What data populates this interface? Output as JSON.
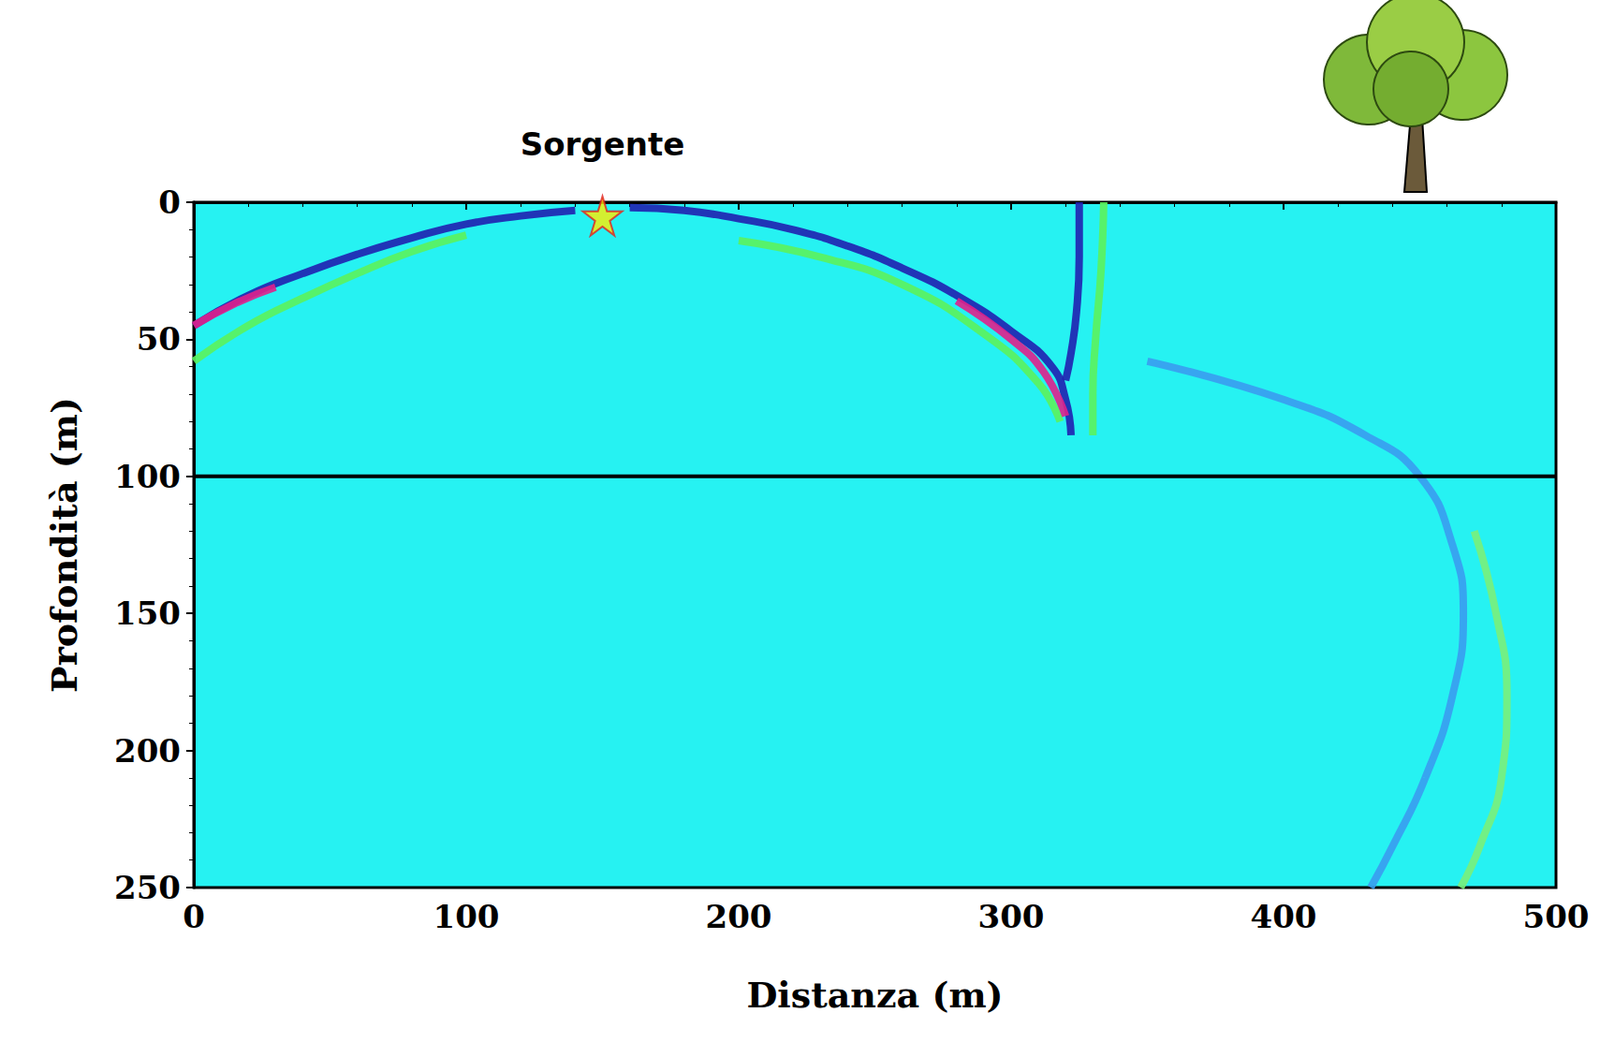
{
  "chart_data": {
    "type": "line",
    "xlabel": "Distanza (m)",
    "ylabel": "Profondità (m)",
    "xlim": [
      0,
      500
    ],
    "xticks": [
      0,
      100,
      200,
      300,
      400,
      500
    ],
    "ylim": [
      0,
      250
    ],
    "yticks": [
      0,
      50,
      100,
      150,
      200,
      250
    ],
    "grid": false,
    "annotations": [
      {
        "text": "Sorgente",
        "x": 150
      }
    ],
    "series": [
      {
        "type": "line",
        "line_style": "solid",
        "color": "#5cf25c",
        "x": [
          0,
          20,
          40,
          60,
          80,
          100
        ],
        "values": [
          58,
          45,
          35,
          26,
          18,
          12
        ]
      },
      {
        "type": "line",
        "line_style": "solid",
        "color": "#2020b0",
        "x": [
          0,
          20,
          40,
          60,
          80,
          100,
          120,
          140
        ],
        "values": [
          45,
          34,
          26,
          19,
          13,
          8,
          5,
          3
        ]
      },
      {
        "type": "line",
        "line_style": "solid",
        "color": "#e0208c",
        "x": [
          0,
          15,
          30
        ],
        "values": [
          45,
          37,
          31
        ]
      },
      {
        "type": "line",
        "line_style": "solid",
        "color": "#5cf25c",
        "x": [
          200,
          230,
          260,
          290,
          310,
          318
        ],
        "values": [
          14,
          20,
          30,
          48,
          66,
          80
        ]
      },
      {
        "type": "line",
        "line_style": "solid",
        "color": "#2020b0",
        "x": [
          160,
          180,
          200,
          220,
          240,
          260,
          280,
          300,
          315,
          320,
          322
        ],
        "values": [
          2,
          3,
          6,
          10,
          16,
          24,
          34,
          47,
          60,
          72,
          85
        ]
      },
      {
        "type": "line",
        "line_style": "solid",
        "color": "#e0208c",
        "x": [
          280,
          300,
          312,
          320
        ],
        "values": [
          36,
          50,
          62,
          78
        ]
      },
      {
        "type": "line",
        "line_style": "solid",
        "color": "#2020b0",
        "x": [
          325,
          325,
          324,
          322,
          320
        ],
        "values": [
          0,
          20,
          40,
          55,
          65
        ]
      },
      {
        "type": "line",
        "line_style": "solid",
        "color": "#5cf25c",
        "x": [
          334,
          333,
          331,
          330,
          330
        ],
        "values": [
          0,
          25,
          50,
          70,
          85
        ]
      },
      {
        "type": "line",
        "line_style": "solid",
        "color": "#3a9cf0",
        "x": [
          350,
          400,
          430,
          450,
          462,
          466,
          462,
          452,
          440,
          432
        ],
        "values": [
          58,
          72,
          85,
          100,
          125,
          150,
          180,
          210,
          235,
          250
        ]
      },
      {
        "type": "line",
        "line_style": "solid",
        "color": "#7af07a",
        "x": [
          470,
          478,
          482,
          480,
          472,
          465
        ],
        "values": [
          120,
          150,
          180,
          210,
          235,
          250
        ]
      },
      {
        "type": "line",
        "line_style": "solid",
        "color": "#000000",
        "x": [
          0,
          500
        ],
        "values": [
          100,
          100
        ]
      },
      {
        "type": "scatter",
        "marker": "star",
        "color": "#ffee00",
        "x": [
          150
        ],
        "values": [
          5
        ]
      }
    ]
  }
}
